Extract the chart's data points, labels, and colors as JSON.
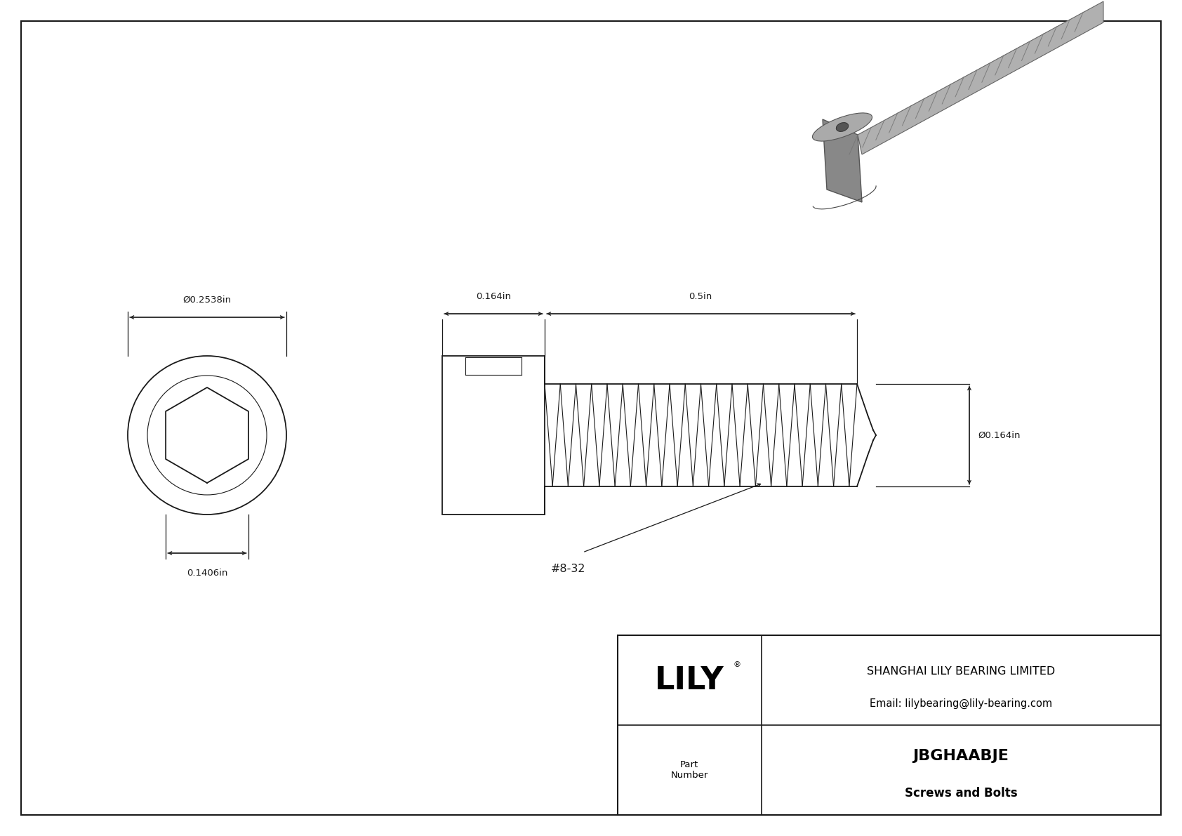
{
  "bg_color": "#ffffff",
  "line_color": "#1a1a1a",
  "dim_color": "#1a1a1a",
  "company_name": "SHANGHAI LILY BEARING LIMITED",
  "company_email": "Email: lilybearing@lily-bearing.com",
  "part_label": "Part\nNumber",
  "part_number": "JBGHAABJE",
  "part_type": "Screws and Bolts",
  "lily_text": "LILY",
  "registered_symbol": "®",
  "dim_diameter_head": "Ø0.2538in",
  "dim_socket": "0.1406in",
  "dim_head_length": "0.164in",
  "dim_thread_length": "0.5in",
  "dim_thread_diameter": "Ø0.164in",
  "thread_label": "#8-32",
  "font_size_dim": 9.5,
  "font_size_label": 9.5,
  "font_size_lily": 32,
  "font_size_company": 10.5,
  "font_size_part": 12,
  "font_size_partnumber": 14
}
